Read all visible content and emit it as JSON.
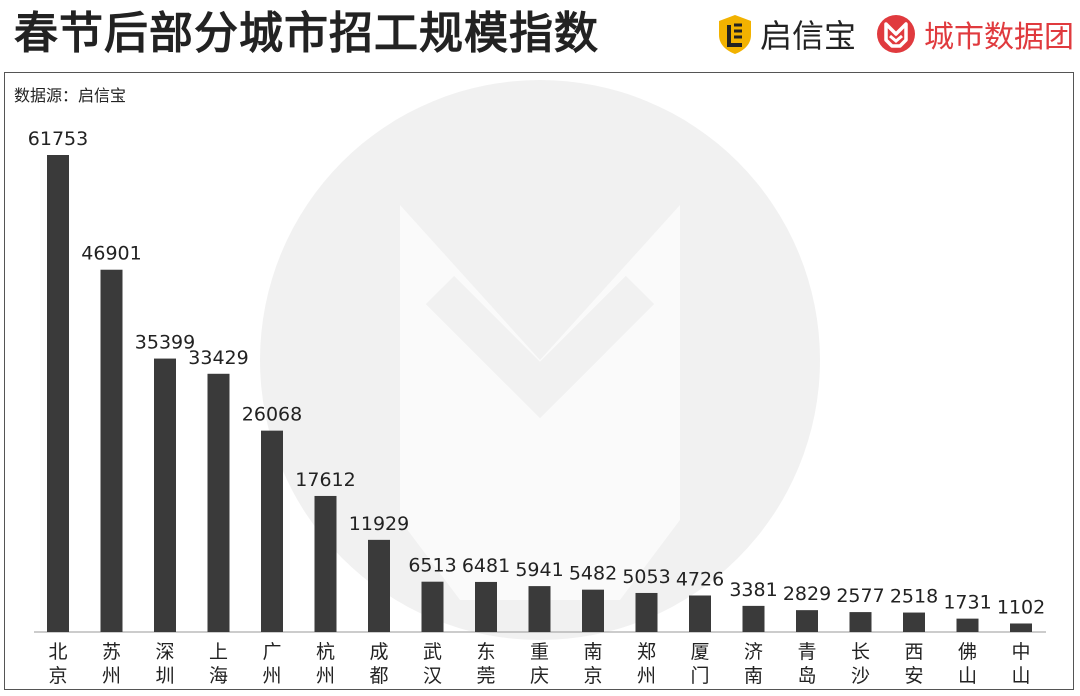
{
  "header": {
    "title": "春节后部分城市招工规模指数",
    "brand_qxb": "启信宝",
    "brand_city": "城市数据团"
  },
  "source_label": "数据源：启信宝",
  "colors": {
    "bar": "#3a3a3a",
    "brand_red": "#e03a3e",
    "brand_gold": "#f2b200",
    "watermark": "#f1f1f1"
  },
  "chart_data": {
    "type": "bar",
    "title": "春节后部分城市招工规模指数",
    "categories": [
      "北京",
      "苏州",
      "深圳",
      "上海",
      "广州",
      "杭州",
      "成都",
      "武汉",
      "东莞",
      "重庆",
      "南京",
      "郑州",
      "厦门",
      "济南",
      "青岛",
      "长沙",
      "西安",
      "佛山",
      "中山"
    ],
    "values": [
      61753,
      46901,
      35399,
      33429,
      26068,
      17612,
      11929,
      6513,
      6481,
      5941,
      5482,
      5053,
      4726,
      3381,
      2829,
      2577,
      2518,
      1731,
      1102
    ],
    "ylim": [
      0,
      61753
    ],
    "grid": false,
    "legend": "none"
  }
}
